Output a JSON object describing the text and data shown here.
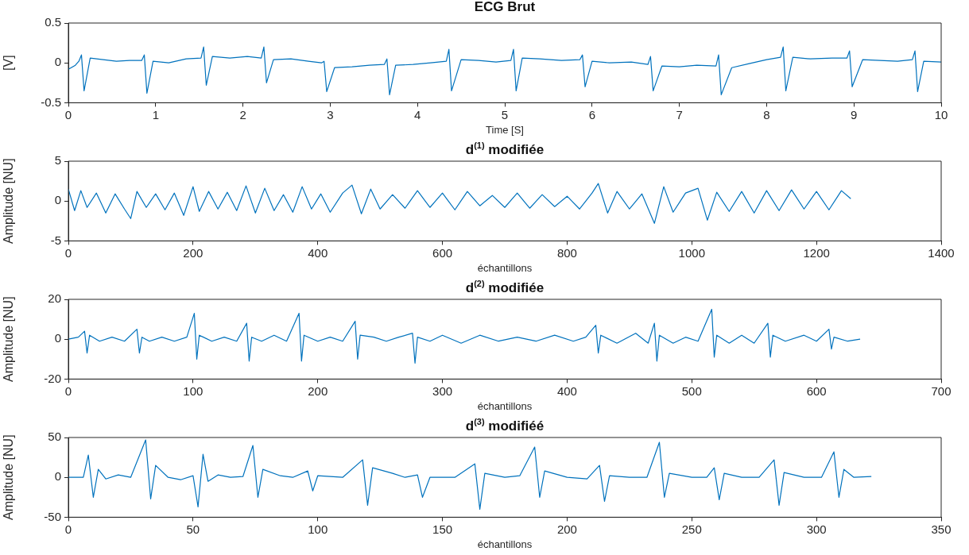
{
  "chart_data": [
    {
      "type": "line",
      "title": "ECG Brut",
      "xlabel": "Time [S]",
      "ylabel": "[V]",
      "xlim": [
        0,
        10
      ],
      "xticks": [
        0,
        1,
        2,
        3,
        4,
        5,
        6,
        7,
        8,
        9,
        10
      ],
      "ylim": [
        -0.5,
        0.5
      ],
      "yticks": [
        -0.5,
        0,
        0.5
      ],
      "series": [
        {
          "color": "#0072bd",
          "x": [
            0,
            0.08,
            0.12,
            0.15,
            0.18,
            0.25,
            0.4,
            0.55,
            0.7,
            0.84,
            0.87,
            0.9,
            0.97,
            1.15,
            1.35,
            1.52,
            1.55,
            1.58,
            1.65,
            1.85,
            2.05,
            2.21,
            2.24,
            2.27,
            2.35,
            2.55,
            2.75,
            2.9,
            2.93,
            2.96,
            3.05,
            3.25,
            3.45,
            3.62,
            3.65,
            3.68,
            3.75,
            3.95,
            4.15,
            4.33,
            4.36,
            4.39,
            4.5,
            4.7,
            4.9,
            5.07,
            5.1,
            5.13,
            5.2,
            5.4,
            5.65,
            5.86,
            5.89,
            5.92,
            6.0,
            6.2,
            6.45,
            6.64,
            6.67,
            6.7,
            6.8,
            7.0,
            7.2,
            7.42,
            7.45,
            7.48,
            7.6,
            7.8,
            8.0,
            8.16,
            8.19,
            8.22,
            8.3,
            8.5,
            8.75,
            8.92,
            8.95,
            8.98,
            9.1,
            9.3,
            9.5,
            9.67,
            9.7,
            9.73,
            9.8,
            10
          ],
          "values": [
            -0.08,
            -0.03,
            0.02,
            0.1,
            -0.35,
            0.06,
            0.04,
            0.02,
            0.03,
            0.03,
            0.1,
            -0.38,
            0.02,
            0.0,
            0.05,
            0.06,
            0.2,
            -0.28,
            0.08,
            0.06,
            0.08,
            0.06,
            0.2,
            -0.25,
            0.04,
            0.05,
            0.02,
            0.0,
            0.02,
            -0.36,
            -0.06,
            -0.05,
            -0.03,
            -0.02,
            0.05,
            -0.4,
            -0.03,
            -0.02,
            0.0,
            0.02,
            0.17,
            -0.35,
            0.04,
            0.03,
            0.01,
            0.03,
            0.17,
            -0.35,
            0.06,
            0.05,
            0.03,
            0.04,
            0.1,
            -0.3,
            0.02,
            0.0,
            0.01,
            -0.02,
            0.08,
            -0.35,
            -0.04,
            -0.05,
            -0.03,
            -0.04,
            0.1,
            -0.4,
            -0.06,
            -0.01,
            0.04,
            0.07,
            0.2,
            -0.35,
            0.07,
            0.05,
            0.06,
            0.06,
            0.15,
            -0.3,
            0.04,
            0.03,
            0.02,
            0.04,
            0.15,
            -0.36,
            0.02,
            0.01
          ]
        }
      ]
    },
    {
      "type": "line",
      "title": "d$^{(1)}$ modifiée",
      "xlabel": "échantillons",
      "ylabel": "Amplitude [NU]",
      "xlim": [
        0,
        1400
      ],
      "xticks": [
        0,
        200,
        400,
        600,
        800,
        1000,
        1200,
        1400
      ],
      "ylim": [
        -5,
        5
      ],
      "yticks": [
        -5,
        0,
        5
      ],
      "series": [
        {
          "color": "#0072bd",
          "x": [
            0,
            10,
            20,
            30,
            45,
            60,
            75,
            90,
            100,
            110,
            125,
            140,
            155,
            170,
            185,
            200,
            210,
            225,
            240,
            255,
            270,
            285,
            300,
            315,
            330,
            345,
            360,
            375,
            390,
            405,
            420,
            440,
            455,
            470,
            485,
            500,
            520,
            540,
            560,
            580,
            600,
            620,
            640,
            660,
            680,
            700,
            720,
            740,
            760,
            780,
            800,
            820,
            840,
            850,
            865,
            880,
            900,
            920,
            940,
            955,
            970,
            990,
            1010,
            1025,
            1040,
            1060,
            1080,
            1100,
            1120,
            1140,
            1160,
            1180,
            1200,
            1220,
            1240,
            1255
          ],
          "values": [
            1.5,
            -1.2,
            1.3,
            -0.8,
            1.0,
            -1.5,
            0.9,
            -1.0,
            -2.2,
            1.2,
            -0.8,
            0.9,
            -1.1,
            1.0,
            -1.8,
            1.8,
            -1.3,
            1.2,
            -1.0,
            1.1,
            -1.2,
            1.9,
            -1.5,
            1.6,
            -1.2,
            0.8,
            -1.4,
            1.8,
            -1.0,
            0.9,
            -1.4,
            1.0,
            2.0,
            -1.6,
            1.5,
            -1.0,
            0.8,
            -0.9,
            1.3,
            -0.8,
            1.0,
            -1.1,
            1.2,
            -0.6,
            0.7,
            -0.8,
            1.0,
            -0.9,
            0.8,
            -0.7,
            0.6,
            -1.0,
            1.0,
            2.2,
            -1.5,
            1.2,
            -1.0,
            0.9,
            -2.8,
            1.8,
            -1.4,
            1.0,
            1.6,
            -2.4,
            1.1,
            -1.3,
            1.2,
            -1.5,
            1.3,
            -1.2,
            1.4,
            -1.0,
            1.2,
            -1.1,
            1.3,
            0.3
          ]
        }
      ]
    },
    {
      "type": "line",
      "title": "d$^{(2)}$ modifiée",
      "xlabel": "échantillons",
      "ylabel": "Amplitude [NU]",
      "xlim": [
        0,
        700
      ],
      "xticks": [
        0,
        100,
        200,
        300,
        400,
        500,
        600,
        700
      ],
      "ylim": [
        -20,
        20
      ],
      "yticks": [
        -20,
        0,
        20
      ],
      "series": [
        {
          "color": "#0072bd",
          "x": [
            0,
            8,
            13,
            15,
            17,
            25,
            35,
            45,
            55,
            57,
            59,
            65,
            75,
            85,
            95,
            101,
            103,
            105,
            115,
            125,
            135,
            143,
            145,
            147,
            155,
            165,
            175,
            185,
            187,
            189,
            200,
            210,
            220,
            230,
            232,
            234,
            245,
            255,
            265,
            276,
            278,
            280,
            290,
            300,
            315,
            330,
            345,
            360,
            375,
            390,
            405,
            415,
            423,
            425,
            427,
            440,
            455,
            465,
            470,
            472,
            474,
            485,
            495,
            505,
            516,
            518,
            520,
            530,
            540,
            550,
            561,
            563,
            565,
            575,
            590,
            600,
            610,
            612,
            614,
            625,
            635
          ],
          "values": [
            0,
            1,
            4,
            -7,
            2,
            -1,
            1,
            -1,
            5,
            -7,
            1,
            -1,
            1,
            -1,
            1,
            13,
            -10,
            2,
            -1,
            1,
            -1,
            8,
            -11,
            1,
            -1,
            2,
            -1,
            13,
            -11,
            2,
            -1,
            1,
            -1,
            9,
            -10,
            2,
            1,
            -1,
            1,
            3,
            -12,
            1,
            -1,
            2,
            -2,
            2,
            -1,
            1,
            -1,
            2,
            -1,
            1,
            7,
            -7,
            2,
            -2,
            3,
            -2,
            8,
            -11,
            2,
            -2,
            1,
            -1,
            15,
            -9,
            2,
            -2,
            2,
            -2,
            8,
            -9,
            2,
            -1,
            2,
            -1,
            5,
            -5,
            1,
            -1,
            0
          ]
        }
      ]
    },
    {
      "type": "line",
      "title": "d$^{(3)}$ modifiéé",
      "xlabel": "échantillons",
      "ylabel": "Amplitude [NU]",
      "xlim": [
        0,
        350
      ],
      "xticks": [
        0,
        50,
        100,
        150,
        200,
        250,
        300,
        350
      ],
      "ylim": [
        -50,
        50
      ],
      "yticks": [
        -50,
        0,
        50
      ],
      "series": [
        {
          "color": "#0072bd",
          "x": [
            0,
            6,
            8,
            10,
            12,
            15,
            20,
            25,
            31,
            33,
            35,
            40,
            45,
            50,
            52,
            54,
            56,
            60,
            65,
            70,
            74,
            76,
            78,
            85,
            90,
            96,
            98,
            100,
            110,
            118,
            120,
            122,
            130,
            135,
            140,
            142,
            145,
            155,
            163,
            165,
            167,
            175,
            181,
            187,
            189,
            191,
            200,
            208,
            213,
            215,
            217,
            225,
            232,
            237,
            239,
            241,
            250,
            256,
            259,
            261,
            263,
            270,
            277,
            283,
            285,
            287,
            295,
            302,
            307,
            309,
            311,
            315,
            322
          ],
          "values": [
            0,
            0,
            28,
            -25,
            10,
            -2,
            3,
            0,
            47,
            -27,
            15,
            0,
            -3,
            2,
            -37,
            29,
            -5,
            3,
            0,
            1,
            40,
            -25,
            10,
            2,
            0,
            8,
            -17,
            2,
            0,
            22,
            -35,
            12,
            5,
            0,
            3,
            -25,
            0,
            0,
            17,
            -40,
            5,
            0,
            2,
            38,
            -25,
            8,
            0,
            -2,
            15,
            -30,
            2,
            0,
            0,
            44,
            -25,
            5,
            0,
            0,
            12,
            -28,
            5,
            0,
            0,
            22,
            -35,
            6,
            0,
            0,
            32,
            -25,
            10,
            0,
            1
          ]
        }
      ]
    }
  ]
}
